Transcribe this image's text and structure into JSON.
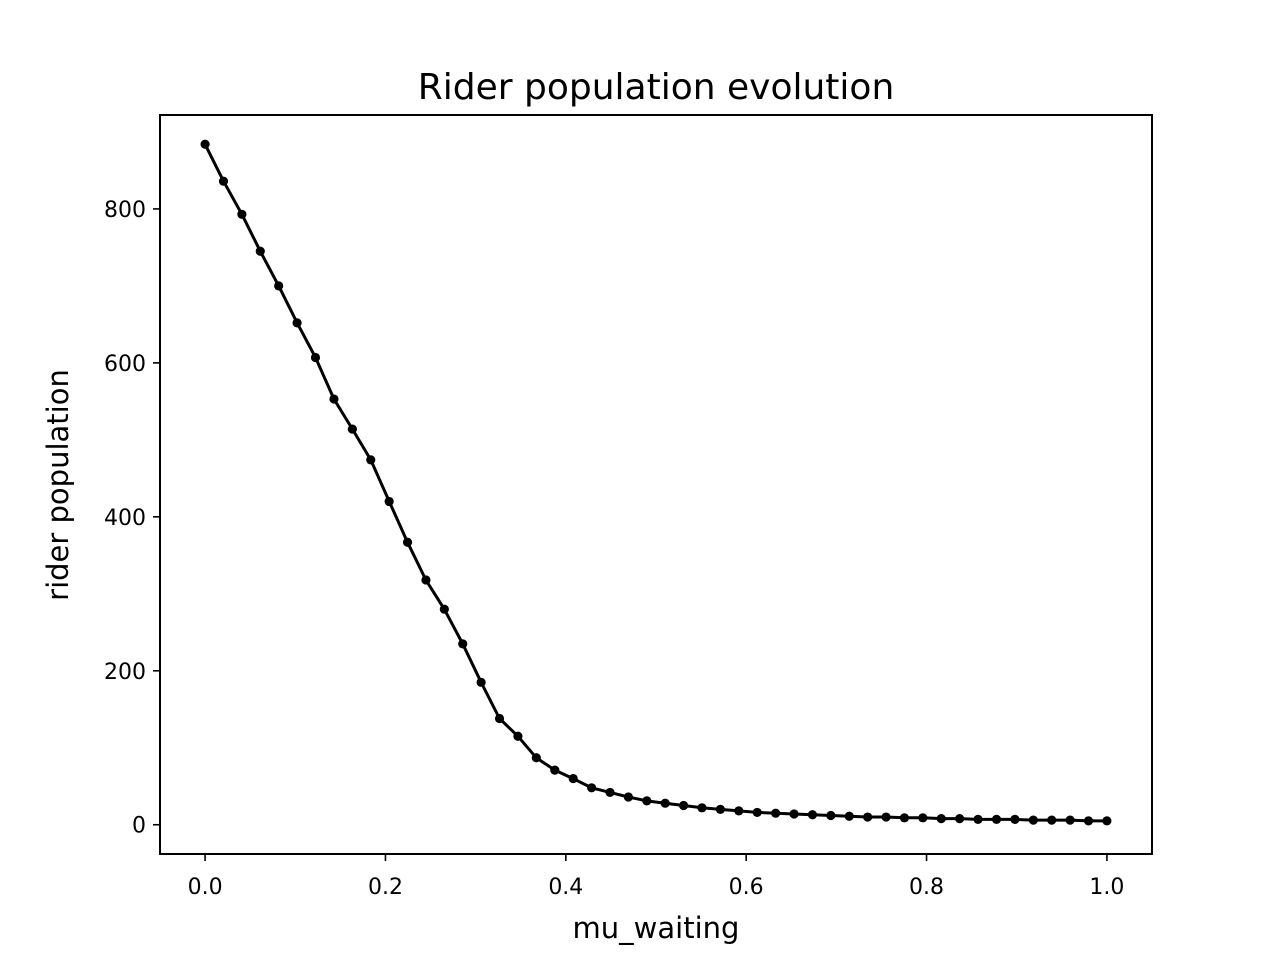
{
  "chart_data": {
    "type": "line",
    "title": "Rider population evolution",
    "xlabel": "mu_waiting",
    "ylabel": "rider population",
    "xlim": [
      -0.05,
      1.05
    ],
    "ylim": [
      -38,
      922
    ],
    "xticks": [
      0.0,
      0.2,
      0.4,
      0.6,
      0.8,
      1.0
    ],
    "xtick_labels": [
      "0.0",
      "0.2",
      "0.4",
      "0.6",
      "0.8",
      "1.0"
    ],
    "yticks": [
      0,
      200,
      400,
      600,
      800
    ],
    "ytick_labels": [
      "0",
      "200",
      "400",
      "600",
      "800"
    ],
    "grid": false,
    "legend": null,
    "series": [
      {
        "color": "#000000",
        "marker": "circle",
        "x": [
          0.0,
          0.0204,
          0.0408,
          0.0612,
          0.0816,
          0.102,
          0.1224,
          0.1429,
          0.1633,
          0.1837,
          0.2041,
          0.2245,
          0.2449,
          0.2653,
          0.2857,
          0.3061,
          0.3265,
          0.3469,
          0.3673,
          0.3878,
          0.4082,
          0.4286,
          0.449,
          0.4694,
          0.4898,
          0.5102,
          0.5306,
          0.551,
          0.5714,
          0.5918,
          0.6122,
          0.6327,
          0.6531,
          0.6735,
          0.6939,
          0.7143,
          0.7347,
          0.7551,
          0.7755,
          0.7959,
          0.8163,
          0.8367,
          0.8571,
          0.8776,
          0.898,
          0.9184,
          0.9388,
          0.9592,
          0.9796,
          1.0
        ],
        "y": [
          884,
          836,
          793,
          745,
          700,
          652,
          607,
          553,
          514,
          474,
          420,
          367,
          318,
          280,
          235,
          185,
          138,
          115,
          87,
          71,
          60,
          48,
          42,
          36,
          31,
          28,
          25,
          22,
          20,
          18,
          16,
          15,
          14,
          13,
          12,
          11,
          10,
          10,
          9,
          9,
          8,
          8,
          7,
          7,
          7,
          6,
          6,
          6,
          5,
          5
        ]
      }
    ]
  }
}
